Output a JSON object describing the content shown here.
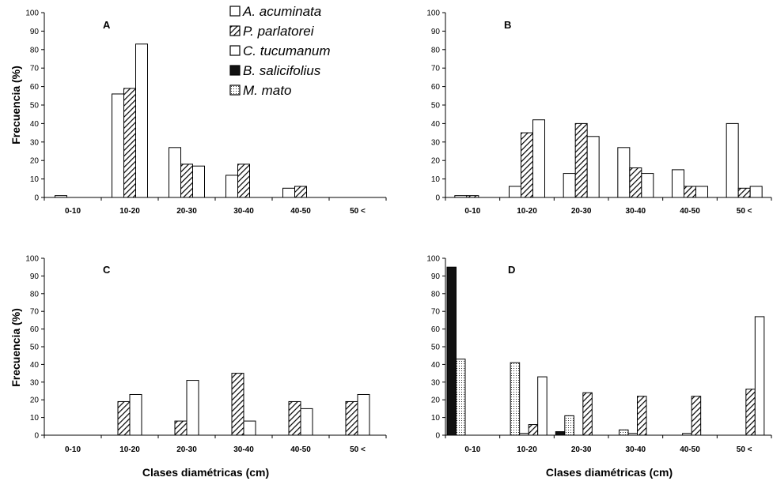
{
  "colors": {
    "A. acuminata": "#ffffff",
    "P. parlatorei": "#ffffff",
    "C. tucumanum": "#ffffff",
    "B. salicifolius": "#111111",
    "M. mato": "#ffffff"
  },
  "legend": {
    "placement": "top-center",
    "entries": [
      {
        "name": "A. acuminata",
        "pattern": "empty"
      },
      {
        "name": "P. parlatorei",
        "pattern": "hatch"
      },
      {
        "name": "C. tucumanum",
        "pattern": "empty"
      },
      {
        "name": "B. salicifolius",
        "pattern": "solid"
      },
      {
        "name": "M. mato",
        "pattern": "dots"
      }
    ]
  },
  "chart_data": [
    {
      "type": "bar",
      "panel": "A",
      "categories": [
        "0-10",
        "10-20",
        "20-30",
        "30-40",
        "40-50",
        "50 <"
      ],
      "ylim": [
        0,
        100
      ],
      "yticks": [
        0,
        10,
        20,
        30,
        40,
        50,
        60,
        70,
        80,
        90,
        100
      ],
      "ylabel": "Frecuencia (%)",
      "xlabel": "",
      "series": [
        {
          "name": "A. acuminata",
          "pattern": "empty",
          "values": [
            1,
            56,
            27,
            12,
            5,
            0
          ]
        },
        {
          "name": "P. parlatorei",
          "pattern": "hatch",
          "values": [
            0,
            59,
            18,
            18,
            6,
            0
          ]
        },
        {
          "name": "C. tucumanum",
          "pattern": "empty",
          "values": [
            0,
            83,
            17,
            0,
            0,
            0
          ]
        }
      ]
    },
    {
      "type": "bar",
      "panel": "B",
      "categories": [
        "0-10",
        "10-20",
        "20-30",
        "30-40",
        "40-50",
        "50 <"
      ],
      "ylim": [
        0,
        100
      ],
      "yticks": [
        0,
        10,
        20,
        30,
        40,
        50,
        60,
        70,
        80,
        90,
        100
      ],
      "ylabel": "",
      "xlabel": "",
      "series": [
        {
          "name": "A. acuminata",
          "pattern": "empty",
          "values": [
            1,
            6,
            13,
            27,
            15,
            40
          ]
        },
        {
          "name": "P. parlatorei",
          "pattern": "hatch",
          "values": [
            1,
            35,
            40,
            16,
            6,
            5
          ]
        },
        {
          "name": "C. tucumanum",
          "pattern": "empty",
          "values": [
            0,
            42,
            33,
            13,
            6,
            6
          ]
        }
      ]
    },
    {
      "type": "bar",
      "panel": "C",
      "categories": [
        "0-10",
        "10-20",
        "20-30",
        "30-40",
        "40-50",
        "50 <"
      ],
      "ylim": [
        0,
        100
      ],
      "yticks": [
        0,
        10,
        20,
        30,
        40,
        50,
        60,
        70,
        80,
        90,
        100
      ],
      "ylabel": "Frecuencia (%)",
      "xlabel": "Clases diamétricas (cm)",
      "series": [
        {
          "name": "P. parlatorei",
          "pattern": "hatch",
          "values": [
            0,
            19,
            8,
            35,
            19,
            19
          ]
        },
        {
          "name": "C. tucumanum",
          "pattern": "empty",
          "values": [
            0,
            23,
            31,
            8,
            15,
            23
          ]
        }
      ]
    },
    {
      "type": "bar",
      "panel": "D",
      "categories": [
        "0-10",
        "10-20",
        "20-30",
        "30-40",
        "40-50",
        "50 <"
      ],
      "ylim": [
        0,
        100
      ],
      "yticks": [
        0,
        10,
        20,
        30,
        40,
        50,
        60,
        70,
        80,
        90,
        100
      ],
      "ylabel": "",
      "xlabel": "Clases diamétricas (cm)",
      "series": [
        {
          "name": "B. salicifolius",
          "pattern": "solid",
          "values": [
            95,
            0,
            2,
            0,
            0,
            0
          ]
        },
        {
          "name": "M. mato",
          "pattern": "dots",
          "values": [
            43,
            41,
            11,
            3,
            0,
            0
          ]
        },
        {
          "name": "A. acuminata",
          "pattern": "empty",
          "values": [
            0,
            1,
            0,
            1,
            1,
            0
          ]
        },
        {
          "name": "P. parlatorei",
          "pattern": "hatch",
          "values": [
            0,
            6,
            24,
            22,
            22,
            26
          ]
        },
        {
          "name": "C. tucumanum",
          "pattern": "empty",
          "values": [
            0,
            33,
            0,
            0,
            0,
            67
          ]
        }
      ]
    }
  ]
}
